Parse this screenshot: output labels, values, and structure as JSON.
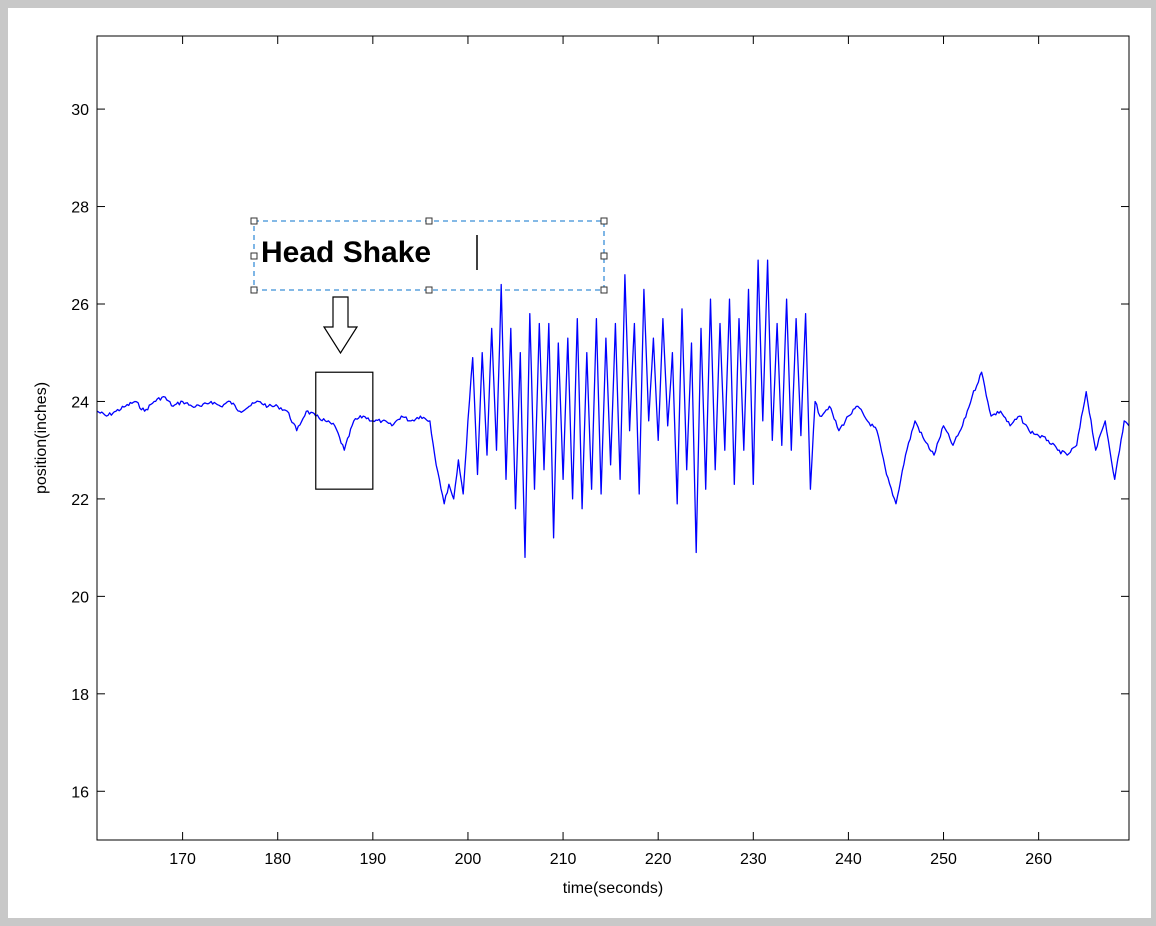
{
  "chart_data": {
    "type": "line",
    "xlabel": "time(seconds)",
    "ylabel": "position(inches)",
    "xlim": [
      161,
      269.5
    ],
    "ylim": [
      15,
      31.5
    ],
    "xticks": [
      170,
      180,
      190,
      200,
      210,
      220,
      230,
      240,
      250,
      260
    ],
    "yticks": [
      16,
      18,
      20,
      22,
      24,
      26,
      28,
      30
    ],
    "grid": false,
    "line_color": "#0000ff",
    "series": [
      {
        "x": [
          161,
          162,
          163,
          164,
          165,
          166,
          167,
          168,
          169,
          170,
          171,
          172,
          173,
          174,
          175,
          176,
          177,
          178,
          179,
          180,
          181,
          182,
          183,
          184,
          185,
          186,
          187,
          188,
          189,
          190,
          191,
          192,
          193,
          194,
          195,
          196,
          196.5,
          197,
          197.5,
          198,
          198.5,
          199,
          199.5,
          200,
          200.5,
          201,
          201.5,
          202,
          202.5,
          203,
          203.5,
          204,
          204.5,
          205,
          205.5,
          206,
          206.5,
          207,
          207.5,
          208,
          208.5,
          209,
          209.5,
          210,
          210.5,
          211,
          211.5,
          212,
          212.5,
          213,
          213.5,
          214,
          214.5,
          215,
          215.5,
          216,
          216.5,
          217,
          217.5,
          218,
          218.5,
          219,
          219.5,
          220,
          220.5,
          221,
          221.5,
          222,
          222.5,
          223,
          223.5,
          224,
          224.5,
          225,
          225.5,
          226,
          226.5,
          227,
          227.5,
          228,
          228.5,
          229,
          229.5,
          230,
          230.5,
          231,
          231.5,
          232,
          232.5,
          233,
          233.5,
          234,
          234.5,
          235,
          235.5,
          236,
          236.5,
          237,
          238,
          239,
          240,
          241,
          242,
          243,
          244,
          245,
          246,
          247,
          248,
          249,
          250,
          251,
          252,
          253,
          254,
          255,
          256,
          257,
          258,
          259,
          260,
          261,
          262,
          263,
          264,
          265,
          266,
          267,
          268,
          269,
          269.5
        ],
        "y": [
          23.8,
          23.7,
          23.8,
          23.9,
          24.0,
          23.8,
          24.0,
          24.1,
          23.9,
          24.0,
          23.9,
          23.9,
          24.0,
          23.9,
          24.0,
          23.8,
          23.9,
          24.0,
          23.9,
          23.9,
          23.8,
          23.4,
          23.8,
          23.7,
          23.6,
          23.5,
          23.0,
          23.6,
          23.7,
          23.6,
          23.6,
          23.5,
          23.7,
          23.6,
          23.7,
          23.6,
          22.9,
          22.4,
          21.9,
          22.3,
          22.0,
          22.8,
          22.1,
          23.6,
          24.9,
          22.5,
          25.0,
          22.9,
          25.5,
          23.0,
          26.4,
          22.4,
          25.5,
          21.8,
          25.0,
          20.8,
          25.8,
          22.2,
          25.6,
          22.6,
          25.6,
          21.2,
          25.2,
          22.4,
          25.3,
          22.0,
          25.7,
          21.8,
          25.0,
          22.2,
          25.7,
          22.1,
          25.3,
          22.7,
          25.6,
          22.4,
          26.6,
          23.4,
          25.6,
          22.1,
          26.3,
          23.6,
          25.3,
          23.2,
          25.7,
          23.5,
          25.0,
          21.9,
          25.9,
          22.6,
          25.2,
          20.9,
          25.5,
          22.2,
          26.1,
          22.6,
          25.6,
          23.0,
          26.1,
          22.3,
          25.7,
          23.0,
          26.3,
          22.3,
          26.9,
          23.6,
          26.9,
          23.2,
          25.6,
          23.1,
          26.1,
          23.0,
          25.7,
          23.3,
          25.8,
          22.2,
          24.0,
          23.7,
          23.9,
          23.4,
          23.7,
          23.9,
          23.6,
          23.4,
          22.5,
          21.9,
          22.9,
          23.6,
          23.2,
          22.9,
          23.5,
          23.1,
          23.5,
          24.1,
          24.6,
          23.7,
          23.8,
          23.5,
          23.7,
          23.4,
          23.3,
          23.2,
          23.0,
          22.9,
          23.1,
          24.2,
          23.0,
          23.6,
          22.4,
          23.6,
          23.5
        ]
      }
    ],
    "annotation": {
      "text": "Head Shake",
      "box": {
        "x0": 184,
        "x1": 190,
        "y0": 22.2,
        "y1": 24.6
      }
    }
  }
}
